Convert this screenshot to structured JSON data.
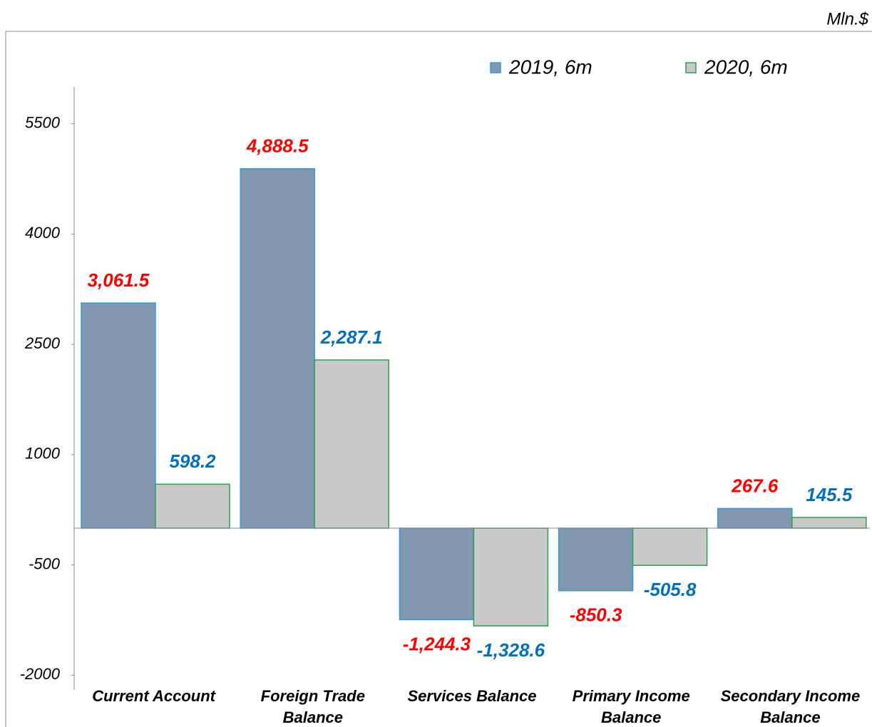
{
  "chart_data": {
    "type": "bar",
    "unit_label": "Mln.$",
    "categories": [
      "Current Account",
      "Foreign Trade Balance",
      "Services Balance",
      "Primary Income Balance",
      "Secondary Income Balance"
    ],
    "series": [
      {
        "name": "2019, 6m",
        "color": "#8497b0",
        "edge_color": "#2e9bd6",
        "label_color": "#ff0000",
        "values": [
          3061.5,
          4888.5,
          -1244.3,
          -850.3,
          267.6
        ],
        "value_labels": [
          "3,061.5",
          "4,888.5",
          "-1,244.3",
          "-850.3",
          "267.6"
        ]
      },
      {
        "name": "2020, 6m",
        "color": "#c9c9c9",
        "edge_color": "#2aa24a",
        "label_color": "#0070c0",
        "values": [
          598.2,
          2287.1,
          -1328.6,
          -505.8,
          145.5
        ],
        "value_labels": [
          "598.2",
          "2,287.1",
          "-1,328.6",
          "-505.8",
          "145.5"
        ]
      }
    ],
    "ylim": [
      -2200,
      6000
    ],
    "yticks": [
      -2000,
      -500,
      1000,
      2500,
      4000,
      5500
    ],
    "grid": false,
    "legend": "top-right"
  }
}
